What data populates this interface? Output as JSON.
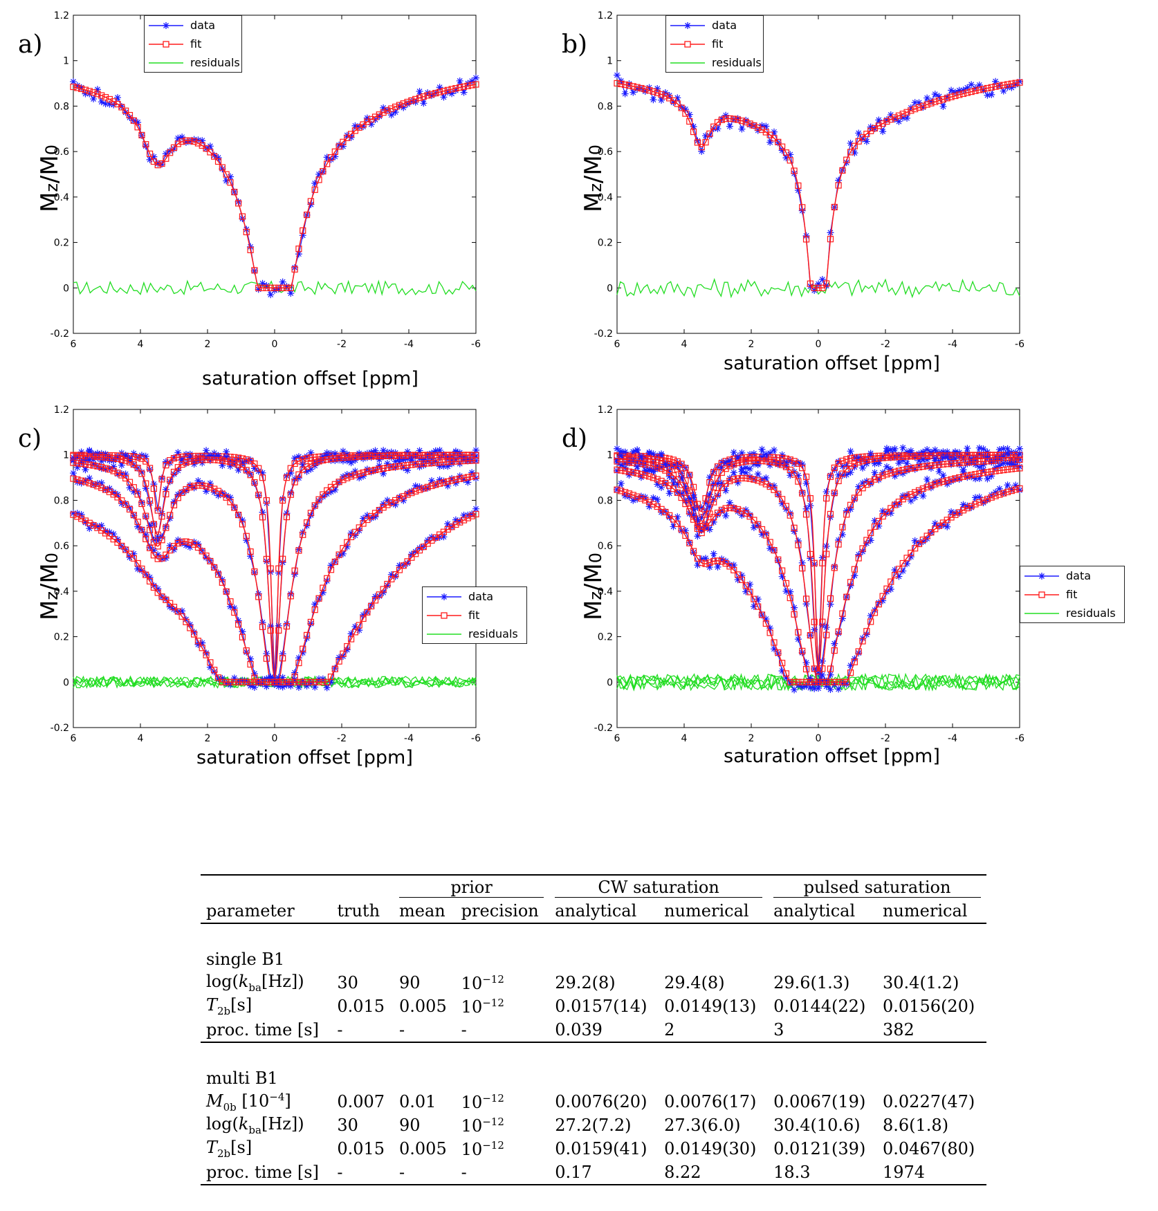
{
  "chart_data": [
    {
      "type": "line",
      "label": "a)",
      "xlabel": "saturation offset [ppm]",
      "ylabel": "Mz/M0",
      "xlim": [
        6,
        -6
      ],
      "ylim": [
        -0.2,
        1.2
      ],
      "xticks": [
        "6",
        "4",
        "2",
        "0",
        "-2",
        "-4",
        "-6"
      ],
      "yticks": [
        "-0.2",
        "0",
        "0.2",
        "0.4",
        "0.6",
        "0.8",
        "1",
        "1.2"
      ],
      "legend_position": "top-left",
      "legend": [
        "data",
        "fit",
        "residuals"
      ],
      "curves": [
        {
          "depth_water": 1.0,
          "width_water": 0.8,
          "depth_cest": 0.25,
          "width_cest": 0.55,
          "tail": 0.28
        }
      ],
      "residual_amplitude": 0.03
    },
    {
      "type": "line",
      "label": "b)",
      "xlabel": "saturation offset [ppm]",
      "ylabel": "Mz/M0",
      "xlim": [
        6,
        -6
      ],
      "ylim": [
        -0.2,
        1.2
      ],
      "xticks": [
        "6",
        "4",
        "2",
        "0",
        "-2",
        "-4",
        "-6"
      ],
      "yticks": [
        "-0.2",
        "0",
        "0.2",
        "0.4",
        "0.6",
        "0.8",
        "1",
        "1.2"
      ],
      "legend_position": "top-left",
      "legend": [
        "data",
        "fit",
        "residuals"
      ],
      "curves": [
        {
          "depth_water": 1.0,
          "width_water": 0.35,
          "depth_cest": 0.2,
          "width_cest": 0.35,
          "tail": 0.3
        }
      ],
      "residual_amplitude": 0.04
    },
    {
      "type": "line",
      "label": "c)",
      "xlabel": "saturation offset [ppm]",
      "ylabel": "Mz/M0",
      "xlim": [
        6,
        -6
      ],
      "ylim": [
        -0.2,
        1.2
      ],
      "xticks": [
        "6",
        "4",
        "2",
        "0",
        "-2",
        "-4",
        "-6"
      ],
      "yticks": [
        "-0.2",
        "0",
        "0.2",
        "0.4",
        "0.6",
        "0.8",
        "1",
        "1.2"
      ],
      "legend_position": "center-right",
      "legend": [
        "data",
        "fit",
        "residuals"
      ],
      "curves": [
        {
          "depth_water": 1.0,
          "width_water": 0.12,
          "depth_cest": 0.25,
          "width_cest": 0.12,
          "tail": 0.0
        },
        {
          "depth_water": 1.0,
          "width_water": 0.22,
          "depth_cest": 0.35,
          "width_cest": 0.25,
          "tail": 0.0
        },
        {
          "depth_water": 1.0,
          "width_water": 0.55,
          "depth_cest": 0.35,
          "width_cest": 0.45,
          "tail": 0.05
        },
        {
          "depth_water": 1.0,
          "width_water": 1.3,
          "depth_cest": 0.25,
          "width_cest": 0.6,
          "tail": 0.15
        },
        {
          "depth_water": 1.0,
          "width_water": 2.7,
          "depth_cest": 0.06,
          "width_cest": 0.5,
          "tail": 0.3
        }
      ],
      "residual_amplitude": 0.025
    },
    {
      "type": "line",
      "label": "d)",
      "xlabel": "saturation offset [ppm]",
      "ylabel": "Mz/M0",
      "xlim": [
        6,
        -6
      ],
      "ylim": [
        -0.2,
        1.2
      ],
      "xticks": [
        "6",
        "4",
        "2",
        "0",
        "-2",
        "-4",
        "-6"
      ],
      "yticks": [
        "-0.2",
        "0",
        "0.2",
        "0.4",
        "0.6",
        "0.8",
        "1",
        "1.2"
      ],
      "legend_position": "center-right",
      "legend": [
        "data",
        "fit",
        "residuals"
      ],
      "curves": [
        {
          "depth_water": 0.95,
          "width_water": 0.12,
          "depth_cest": 0.25,
          "width_cest": 0.25,
          "tail": 0.0
        },
        {
          "depth_water": 0.95,
          "width_water": 0.22,
          "depth_cest": 0.3,
          "width_cest": 0.35,
          "tail": 0.0
        },
        {
          "depth_water": 0.95,
          "width_water": 0.45,
          "depth_cest": 0.3,
          "width_cest": 0.4,
          "tail": 0.05
        },
        {
          "depth_water": 0.95,
          "width_water": 0.9,
          "depth_cest": 0.2,
          "width_cest": 0.5,
          "tail": 0.12
        },
        {
          "depth_water": 0.95,
          "width_water": 1.7,
          "depth_cest": 0.15,
          "width_cest": 0.5,
          "tail": 0.25
        }
      ],
      "residual_amplitude": 0.035
    }
  ],
  "table": {
    "groups": {
      "prior": "prior",
      "cw": "CW saturation",
      "pulsed": "pulsed saturation"
    },
    "headers": [
      "parameter",
      "truth",
      "mean",
      "precision",
      "analytical",
      "numerical",
      "analytical",
      "numerical"
    ],
    "section1_title": "single B1",
    "section1_rows": [
      {
        "p1": "log(",
        "p2": "k",
        "p3": "ba",
        "p4": "[Hz])",
        "truth": "30",
        "mean": "90",
        "prec_base": "10",
        "prec_exp": "−12",
        "cwa": "29.2(8)",
        "cwn": "29.4(8)",
        "pa": "29.6(1.3)",
        "pn": "30.4(1.2)"
      },
      {
        "p1": "",
        "p2": "T",
        "p3": "2b",
        "p4": "[s]",
        "truth": "0.015",
        "mean": "0.005",
        "prec_base": "10",
        "prec_exp": "−12",
        "cwa": "0.0157(14)",
        "cwn": "0.0149(13)",
        "pa": "0.0144(22)",
        "pn": "0.0156(20)"
      },
      {
        "p1": "proc. time [s]",
        "p2": "",
        "p3": "",
        "p4": "",
        "truth": "-",
        "mean": "-",
        "prec_base": "-",
        "prec_exp": "",
        "cwa": "0.039",
        "cwn": "2",
        "pa": "3",
        "pn": "382"
      }
    ],
    "section2_title": "multi B1",
    "section2_rows": [
      {
        "p1": "",
        "p2": "M",
        "p3": "0b",
        "p4": " [10",
        "p5": "−4",
        "p6": "]",
        "truth": "0.007",
        "mean": "0.01",
        "prec_base": "10",
        "prec_exp": "−12",
        "cwa": "0.0076(20)",
        "cwn": "0.0076(17)",
        "pa": "0.0067(19)",
        "pn": "0.0227(47)"
      },
      {
        "p1": "log(",
        "p2": "k",
        "p3": "ba",
        "p4": "[Hz])",
        "p5": "",
        "p6": "",
        "truth": "30",
        "mean": "90",
        "prec_base": "10",
        "prec_exp": "−12",
        "cwa": "27.2(7.2)",
        "cwn": "27.3(6.0)",
        "pa": "30.4(10.6)",
        "pn": "8.6(1.8)"
      },
      {
        "p1": "",
        "p2": "T",
        "p3": "2b",
        "p4": "[s]",
        "p5": "",
        "p6": "",
        "truth": "0.015",
        "mean": "0.005",
        "prec_base": "10",
        "prec_exp": "−12",
        "cwa": "0.0159(41)",
        "cwn": "0.0149(30)",
        "pa": "0.0121(39)",
        "pn": "0.0467(80)"
      },
      {
        "p1": "proc. time [s]",
        "p2": "",
        "p3": "",
        "p4": "",
        "p5": "",
        "p6": "",
        "truth": "-",
        "mean": "-",
        "prec_base": "-",
        "prec_exp": "",
        "cwa": "0.17",
        "cwn": "8.22",
        "pa": "18.3",
        "pn": "1974"
      }
    ]
  }
}
